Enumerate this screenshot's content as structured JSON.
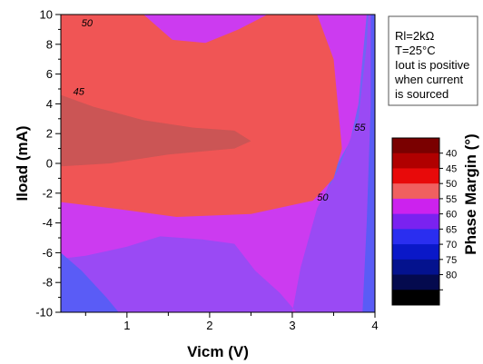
{
  "chart_data": {
    "type": "heatmap",
    "subtype": "filled-contour",
    "xlabel": "Vicm (V)",
    "ylabel": "Iload (mA)",
    "xlim": [
      0.2,
      4.0
    ],
    "ylim": [
      -10,
      10
    ],
    "x_ticks": [
      "1",
      "2",
      "3",
      "4"
    ],
    "y_ticks": [
      "10",
      "8",
      "6",
      "4",
      "2",
      "0",
      "-2",
      "-4",
      "-6",
      "-8",
      "-10"
    ],
    "colorbar": {
      "title": "Phase Margin (°)",
      "levels": [
        {
          "label": "",
          "color": "#7a0000"
        },
        {
          "label": "40",
          "color": "#b00000"
        },
        {
          "label": "45",
          "color": "#e80a0a"
        },
        {
          "label": "50",
          "color": "#f06060"
        },
        {
          "label": "55",
          "color": "#cc22ee"
        },
        {
          "label": "60",
          "color": "#7a22f0"
        },
        {
          "label": "65",
          "color": "#2a2ef0"
        },
        {
          "label": "70",
          "color": "#0a18c8"
        },
        {
          "label": "75",
          "color": "#04128e"
        },
        {
          "label": "80",
          "color": "#040a4e"
        },
        {
          "label": "",
          "color": "#000000"
        }
      ]
    },
    "contour_regions": [
      {
        "level": "<45",
        "color": "#cb5555",
        "points": [
          [
            0.2,
            4.6
          ],
          [
            0.6,
            3.8
          ],
          [
            1.2,
            2.9
          ],
          [
            1.8,
            2.4
          ],
          [
            2.3,
            2.2
          ],
          [
            2.5,
            1.5
          ],
          [
            2.3,
            1.0
          ],
          [
            1.5,
            0.6
          ],
          [
            0.8,
            0.0
          ],
          [
            0.2,
            -0.2
          ]
        ]
      },
      {
        "level": "45-50",
        "color": "#f05555",
        "points": [
          [
            0.2,
            10
          ],
          [
            1.2,
            10
          ],
          [
            1.55,
            8.3
          ],
          [
            1.95,
            8.1
          ],
          [
            2.35,
            9.0
          ],
          [
            2.7,
            10
          ],
          [
            3.3,
            10
          ],
          [
            3.5,
            7.0
          ],
          [
            3.55,
            4.0
          ],
          [
            3.6,
            1.0
          ],
          [
            3.5,
            -1.0
          ],
          [
            3.25,
            -2.5
          ],
          [
            2.5,
            -3.4
          ],
          [
            1.6,
            -3.6
          ],
          [
            0.8,
            -3.0
          ],
          [
            0.2,
            -2.6
          ]
        ]
      },
      {
        "level": "50-55",
        "color": "#cc3bf0",
        "points": [
          [
            0.2,
            10
          ],
          [
            3.9,
            10
          ],
          [
            3.85,
            7.0
          ],
          [
            3.8,
            4.0
          ],
          [
            3.7,
            1.5
          ],
          [
            3.55,
            0.0
          ],
          [
            3.4,
            -2.0
          ],
          [
            3.3,
            -4.0
          ],
          [
            3.2,
            -6.0
          ],
          [
            3.15,
            -8.0
          ],
          [
            3.1,
            -10
          ],
          [
            0.2,
            -10
          ]
        ]
      },
      {
        "level": "55-60",
        "color": "#9a4af4",
        "points": [
          [
            3.92,
            10
          ],
          [
            4.0,
            10
          ],
          [
            4.0,
            -10
          ],
          [
            3.05,
            -10
          ],
          [
            2.85,
            -8.7
          ],
          [
            2.55,
            -7.2
          ],
          [
            2.3,
            -5.4
          ],
          [
            1.9,
            -5.1
          ],
          [
            1.4,
            -4.9
          ],
          [
            1.0,
            -5.6
          ],
          [
            0.5,
            -6.2
          ],
          [
            0.2,
            -6.4
          ],
          [
            0.2,
            -10
          ],
          [
            3.0,
            -10
          ],
          [
            3.1,
            -7.0
          ],
          [
            3.3,
            -3.0
          ],
          [
            3.55,
            -0.5
          ],
          [
            3.8,
            3.0
          ],
          [
            3.9,
            8.0
          ]
        ]
      },
      {
        "level": "60-65",
        "color": "#5a5cf6",
        "points": [
          [
            0.2,
            -6.0
          ],
          [
            0.45,
            -7.2
          ],
          [
            0.75,
            -9.0
          ],
          [
            0.9,
            -10
          ],
          [
            0.2,
            -10
          ]
        ]
      },
      {
        "level": "60-65b",
        "color": "#5a5cf6",
        "points": [
          [
            3.95,
            10
          ],
          [
            4.0,
            10
          ],
          [
            4.0,
            -10
          ],
          [
            3.85,
            -10
          ],
          [
            3.9,
            -4.0
          ],
          [
            3.95,
            4.0
          ]
        ]
      }
    ],
    "contour_labels": [
      {
        "text": "50",
        "x": 0.45,
        "y": 9.2
      },
      {
        "text": "45",
        "x": 0.35,
        "y": 4.6
      },
      {
        "text": "55",
        "x": 3.75,
        "y": 2.2
      },
      {
        "text": "50",
        "x": 3.3,
        "y": -2.5
      }
    ]
  },
  "notes": {
    "lines": [
      "Rl=2kΩ",
      "T=25°C",
      "Iout is positive",
      "when current",
      "is sourced"
    ]
  }
}
